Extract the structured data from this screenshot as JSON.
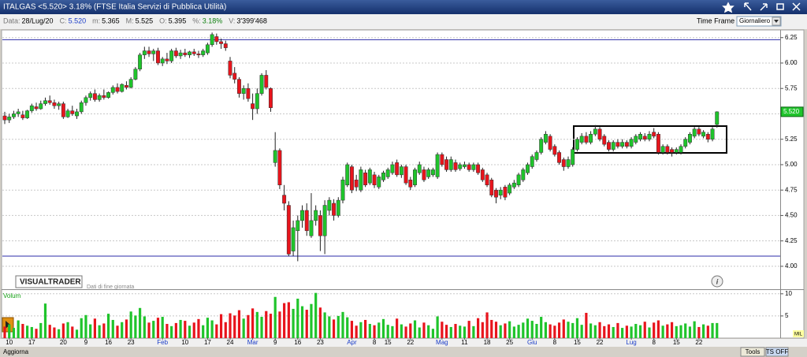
{
  "window": {
    "title": "ITALGAS <5.520> 3.18%  (FTSE Italia Servizi di Pubblica Utilità)",
    "info": [
      {
        "label": "Data:",
        "value": "28/Lug/20"
      },
      {
        "label": "C:",
        "value": "5.520"
      },
      {
        "label": "m:",
        "value": "5.365"
      },
      {
        "label": "M:",
        "value": "5.525"
      },
      {
        "label": "O:",
        "value": "5.395"
      },
      {
        "label": "%:",
        "value": "3.18%"
      },
      {
        "label": "V:",
        "value": "3'399'468"
      }
    ],
    "time_frame_label": "Time Frame",
    "time_frame_value": "Giornaliero",
    "logo": "VISUALTRADER",
    "logo_note": "Dati di fine giornata",
    "update_button": "Aggiorna",
    "tools_button": "Tools",
    "ts_button": "TS OFF"
  },
  "chart_data": {
    "type": "candlestick",
    "up_color": "#1fc42b",
    "down_color": "#e8141c",
    "grid": true,
    "hlines": [
      6.23,
      4.1
    ],
    "hline_color": "#2b2ba8",
    "ylim": [
      3.79,
      6.31
    ],
    "yticks": [
      {
        "value": 4,
        "label": "4.00"
      },
      {
        "value": 4.25,
        "label": "4.25"
      },
      {
        "value": 4.5,
        "label": "4.50"
      },
      {
        "value": 4.75,
        "label": "4.75"
      },
      {
        "value": 5,
        "label": "5.00"
      },
      {
        "value": 5.25,
        "label": "5.25"
      },
      {
        "value": 5.5,
        "label": "5.50"
      },
      {
        "value": 5.75,
        "label": "5.75"
      },
      {
        "value": 6,
        "label": "6.00"
      },
      {
        "value": 6.25,
        "label": "6.25"
      }
    ],
    "categories": [
      null,
      "10",
      null,
      null,
      null,
      null,
      "17",
      null,
      null,
      null,
      null,
      null,
      null,
      "20",
      null,
      null,
      null,
      null,
      "9",
      null,
      null,
      null,
      null,
      "16",
      null,
      null,
      null,
      null,
      "23",
      null,
      null,
      null,
      null,
      null,
      null,
      "Feb",
      null,
      null,
      null,
      null,
      "10",
      null,
      null,
      null,
      null,
      "17",
      null,
      null,
      null,
      null,
      "24",
      null,
      null,
      null,
      null,
      "Mar",
      null,
      null,
      null,
      null,
      "9",
      null,
      null,
      null,
      null,
      "16",
      null,
      null,
      null,
      null,
      "23",
      null,
      null,
      null,
      null,
      null,
      null,
      "Apr",
      null,
      null,
      null,
      null,
      "8",
      null,
      null,
      "15",
      null,
      null,
      null,
      null,
      "22",
      null,
      null,
      null,
      null,
      null,
      null,
      "Mag",
      null,
      null,
      null,
      null,
      "11",
      null,
      null,
      null,
      null,
      "18",
      null,
      null,
      null,
      null,
      "25",
      null,
      null,
      null,
      null,
      "Giu",
      null,
      null,
      null,
      null,
      "8",
      null,
      null,
      null,
      null,
      "15",
      null,
      null,
      null,
      null,
      "22",
      null,
      null,
      null,
      null,
      null,
      null,
      "Lug",
      null,
      null,
      null,
      null,
      "8",
      null,
      null,
      null,
      null,
      "15",
      null,
      null,
      null,
      null,
      "22",
      null,
      null,
      null,
      null
    ],
    "ohlc": [
      [
        5.48,
        5.52,
        5.4,
        5.44
      ],
      [
        5.44,
        5.5,
        5.41,
        5.47
      ],
      [
        5.47,
        5.53,
        5.45,
        5.5
      ],
      [
        5.5,
        5.55,
        5.47,
        5.52
      ],
      [
        5.49,
        5.53,
        5.44,
        5.46
      ],
      [
        5.46,
        5.54,
        5.45,
        5.53
      ],
      [
        5.53,
        5.6,
        5.51,
        5.58
      ],
      [
        5.57,
        5.61,
        5.53,
        5.55
      ],
      [
        5.55,
        5.63,
        5.54,
        5.6
      ],
      [
        5.6,
        5.66,
        5.58,
        5.63
      ],
      [
        5.63,
        5.68,
        5.59,
        5.61
      ],
      [
        5.61,
        5.64,
        5.55,
        5.58
      ],
      [
        5.58,
        5.62,
        5.54,
        5.6
      ],
      [
        5.6,
        5.62,
        5.45,
        5.47
      ],
      [
        5.47,
        5.55,
        5.46,
        5.53
      ],
      [
        5.53,
        5.58,
        5.48,
        5.5
      ],
      [
        5.48,
        5.55,
        5.45,
        5.52
      ],
      [
        5.52,
        5.63,
        5.5,
        5.61
      ],
      [
        5.61,
        5.68,
        5.58,
        5.66
      ],
      [
        5.66,
        5.72,
        5.63,
        5.7
      ],
      [
        5.7,
        5.74,
        5.62,
        5.64
      ],
      [
        5.64,
        5.7,
        5.62,
        5.68
      ],
      [
        5.68,
        5.74,
        5.64,
        5.66
      ],
      [
        5.66,
        5.72,
        5.65,
        5.71
      ],
      [
        5.71,
        5.78,
        5.69,
        5.76
      ],
      [
        5.76,
        5.8,
        5.7,
        5.72
      ],
      [
        5.72,
        5.8,
        5.71,
        5.79
      ],
      [
        5.78,
        5.82,
        5.74,
        5.76
      ],
      [
        5.76,
        5.86,
        5.75,
        5.84
      ],
      [
        5.84,
        5.96,
        5.83,
        5.94
      ],
      [
        5.94,
        6.1,
        5.92,
        6.08
      ],
      [
        6.08,
        6.16,
        6.04,
        6.12
      ],
      [
        6.12,
        6.16,
        6.06,
        6.09
      ],
      [
        6.09,
        6.14,
        6.02,
        6.12
      ],
      [
        6.12,
        6.15,
        5.98,
        6.0
      ],
      [
        6.0,
        6.06,
        5.97,
        6.04
      ],
      [
        6.04,
        6.1,
        5.99,
        6.02
      ],
      [
        6.02,
        6.14,
        6.0,
        6.12
      ],
      [
        6.12,
        6.15,
        6.05,
        6.07
      ],
      [
        6.07,
        6.13,
        6.04,
        6.1
      ],
      [
        6.1,
        6.14,
        6.06,
        6.08
      ],
      [
        6.08,
        6.12,
        6.05,
        6.11
      ],
      [
        6.11,
        6.14,
        6.07,
        6.09
      ],
      [
        6.09,
        6.12,
        6.05,
        6.08
      ],
      [
        6.08,
        6.14,
        6.06,
        6.12
      ],
      [
        6.1,
        6.2,
        6.08,
        6.18
      ],
      [
        6.18,
        6.3,
        6.16,
        6.28
      ],
      [
        6.26,
        6.29,
        6.18,
        6.21
      ],
      [
        6.21,
        6.24,
        6.14,
        6.19
      ],
      [
        6.19,
        6.22,
        6.12,
        6.15
      ],
      [
        6.02,
        6.06,
        5.85,
        5.88
      ],
      [
        5.9,
        5.96,
        5.8,
        5.84
      ],
      [
        5.84,
        5.86,
        5.66,
        5.7
      ],
      [
        5.7,
        5.78,
        5.64,
        5.75
      ],
      [
        5.75,
        5.8,
        5.62,
        5.65
      ],
      [
        5.6,
        5.7,
        5.44,
        5.55
      ],
      [
        5.55,
        5.75,
        5.5,
        5.7
      ],
      [
        5.7,
        5.9,
        5.68,
        5.88
      ],
      [
        5.88,
        5.93,
        5.74,
        5.76
      ],
      [
        5.75,
        5.76,
        5.52,
        5.56
      ],
      [
        5.02,
        5.32,
        4.98,
        5.14
      ],
      [
        5.14,
        5.16,
        4.76,
        4.8
      ],
      [
        4.7,
        4.8,
        4.55,
        4.62
      ],
      [
        4.6,
        4.64,
        4.1,
        4.12
      ],
      [
        4.15,
        4.45,
        4.1,
        4.38
      ],
      [
        4.35,
        4.5,
        4.05,
        4.45
      ],
      [
        4.45,
        4.6,
        4.38,
        4.55
      ],
      [
        4.55,
        4.62,
        4.3,
        4.35
      ],
      [
        4.3,
        4.72,
        4.28,
        4.45
      ],
      [
        4.45,
        4.6,
        4.4,
        4.55
      ],
      [
        4.5,
        4.55,
        4.15,
        4.3
      ],
      [
        4.3,
        4.65,
        4.12,
        4.6
      ],
      [
        4.55,
        4.68,
        4.5,
        4.65
      ],
      [
        4.62,
        4.66,
        4.45,
        4.5
      ],
      [
        4.5,
        4.68,
        4.48,
        4.65
      ],
      [
        4.65,
        4.88,
        4.62,
        4.85
      ],
      [
        4.8,
        5.02,
        4.78,
        5.0
      ],
      [
        4.98,
        5.0,
        4.72,
        4.75
      ],
      [
        4.85,
        4.9,
        4.74,
        4.78
      ],
      [
        4.75,
        4.98,
        4.73,
        4.95
      ],
      [
        4.92,
        4.95,
        4.78,
        4.8
      ],
      [
        4.82,
        4.97,
        4.8,
        4.95
      ],
      [
        4.9,
        4.93,
        4.77,
        4.8
      ],
      [
        4.78,
        4.9,
        4.76,
        4.88
      ],
      [
        4.85,
        4.94,
        4.83,
        4.92
      ],
      [
        4.88,
        4.97,
        4.86,
        4.95
      ],
      [
        4.92,
        5.03,
        4.9,
        5.0
      ],
      [
        5.02,
        5.05,
        4.88,
        4.9
      ],
      [
        4.9,
        5.0,
        4.87,
        4.98
      ],
      [
        4.98,
        5.0,
        4.8,
        4.82
      ],
      [
        4.85,
        4.88,
        4.75,
        4.78
      ],
      [
        4.8,
        4.97,
        4.78,
        4.95
      ],
      [
        4.92,
        5.03,
        4.9,
        5.0
      ],
      [
        4.95,
        4.98,
        4.83,
        4.85
      ],
      [
        4.88,
        4.97,
        4.86,
        4.95
      ],
      [
        4.9,
        4.97,
        4.88,
        4.95
      ],
      [
        4.88,
        5.12,
        4.86,
        5.1
      ],
      [
        5.1,
        5.12,
        4.98,
        5.0
      ],
      [
        5.05,
        5.08,
        4.93,
        4.95
      ],
      [
        4.95,
        5.08,
        4.93,
        5.05
      ],
      [
        5.02,
        5.05,
        4.93,
        4.95
      ],
      [
        4.96,
        5.02,
        4.94,
        5.0
      ],
      [
        4.98,
        5.03,
        4.96,
        5.0
      ],
      [
        5.0,
        5.02,
        4.93,
        4.95
      ],
      [
        4.95,
        5.02,
        4.93,
        5.0
      ],
      [
        5.0,
        5.02,
        4.9,
        4.92
      ],
      [
        4.95,
        4.97,
        4.83,
        4.85
      ],
      [
        4.9,
        4.92,
        4.78,
        4.8
      ],
      [
        4.85,
        4.87,
        4.68,
        4.7
      ],
      [
        4.75,
        4.77,
        4.62,
        4.68
      ],
      [
        4.7,
        4.78,
        4.66,
        4.75
      ],
      [
        4.78,
        4.8,
        4.65,
        4.68
      ],
      [
        4.72,
        4.82,
        4.7,
        4.8
      ],
      [
        4.78,
        4.85,
        4.76,
        4.82
      ],
      [
        4.8,
        4.92,
        4.78,
        4.9
      ],
      [
        4.85,
        4.97,
        4.83,
        4.95
      ],
      [
        4.92,
        5.02,
        4.9,
        5.0
      ],
      [
        4.98,
        5.1,
        4.96,
        5.08
      ],
      [
        5.05,
        5.14,
        5.03,
        5.12
      ],
      [
        5.12,
        5.27,
        5.1,
        5.25
      ],
      [
        5.22,
        5.33,
        5.2,
        5.3
      ],
      [
        5.28,
        5.3,
        5.13,
        5.15
      ],
      [
        5.18,
        5.2,
        5.08,
        5.1
      ],
      [
        5.12,
        5.14,
        5.0,
        5.02
      ],
      [
        5.05,
        5.07,
        4.94,
        4.98
      ],
      [
        4.98,
        5.08,
        4.96,
        5.05
      ],
      [
        5.0,
        5.17,
        4.98,
        5.15
      ],
      [
        5.15,
        5.27,
        5.13,
        5.25
      ],
      [
        5.22,
        5.31,
        5.2,
        5.28
      ],
      [
        5.28,
        5.32,
        5.2,
        5.22
      ],
      [
        5.22,
        5.33,
        5.2,
        5.3
      ],
      [
        5.3,
        5.39,
        5.28,
        5.35
      ],
      [
        5.35,
        5.37,
        5.23,
        5.25
      ],
      [
        5.28,
        5.3,
        5.18,
        5.2
      ],
      [
        5.22,
        5.24,
        5.13,
        5.15
      ],
      [
        5.15,
        5.24,
        5.13,
        5.22
      ],
      [
        5.22,
        5.25,
        5.16,
        5.18
      ],
      [
        5.18,
        5.25,
        5.16,
        5.22
      ],
      [
        5.22,
        5.24,
        5.16,
        5.18
      ],
      [
        5.18,
        5.27,
        5.16,
        5.25
      ],
      [
        5.22,
        5.3,
        5.2,
        5.28
      ],
      [
        5.25,
        5.32,
        5.23,
        5.3
      ],
      [
        5.28,
        5.31,
        5.23,
        5.25
      ],
      [
        5.25,
        5.33,
        5.23,
        5.3
      ],
      [
        5.32,
        5.36,
        5.26,
        5.28
      ],
      [
        5.3,
        5.32,
        5.1,
        5.12
      ],
      [
        5.12,
        5.2,
        5.1,
        5.18
      ],
      [
        5.18,
        5.2,
        5.1,
        5.12
      ],
      [
        5.15,
        5.17,
        5.08,
        5.12
      ],
      [
        5.12,
        5.17,
        5.1,
        5.15
      ],
      [
        5.12,
        5.2,
        5.1,
        5.18
      ],
      [
        5.18,
        5.27,
        5.16,
        5.25
      ],
      [
        5.22,
        5.32,
        5.2,
        5.3
      ],
      [
        5.28,
        5.37,
        5.26,
        5.35
      ],
      [
        5.35,
        5.37,
        5.28,
        5.3
      ],
      [
        5.28,
        5.34,
        5.26,
        5.32
      ],
      [
        5.3,
        5.32,
        5.22,
        5.25
      ],
      [
        5.25,
        5.37,
        5.23,
        5.35
      ],
      [
        5.395,
        5.525,
        5.365,
        5.52
      ]
    ],
    "volume": {
      "label": "Volum",
      "unit_label": "MIL",
      "ylim": [
        0,
        10.5
      ],
      "yticks": [
        5,
        10
      ],
      "values": [
        2.6,
        3.1,
        2.3,
        4.0,
        3.2,
        2.8,
        2.5,
        2.1,
        3.4,
        7.8,
        3.0,
        2.4,
        2.0,
        3.3,
        3.6,
        2.6,
        1.9,
        4.5,
        5.2,
        3.1,
        4.4,
        2.9,
        3.3,
        5.5,
        4.1,
        2.8,
        3.6,
        4.2,
        6.0,
        5.1,
        6.8,
        4.9,
        3.5,
        3.9,
        4.6,
        4.8,
        3.2,
        2.7,
        3.4,
        4.1,
        3.9,
        2.8,
        3.5,
        4.3,
        2.9,
        4.6,
        4.0,
        3.1,
        5.4,
        3.6,
        5.6,
        5.1,
        6.3,
        4.4,
        5.2,
        6.7,
        5.9,
        4.8,
        6.1,
        5.5,
        9.3,
        6.0,
        7.9,
        8.1,
        6.6,
        8.9,
        7.2,
        6.4,
        7.7,
        10.2,
        6.9,
        5.8,
        4.9,
        4.2,
        5.0,
        5.9,
        4.7,
        3.9,
        2.8,
        3.6,
        4.1,
        3.2,
        2.9,
        3.5,
        4.3,
        3.0,
        2.7,
        4.4,
        3.1,
        2.6,
        3.3,
        4.0,
        2.4,
        3.5,
        2.9,
        2.1,
        4.9,
        3.7,
        3.0,
        2.5,
        3.2,
        2.8,
        2.6,
        3.9,
        2.7,
        4.5,
        3.6,
        5.8,
        4.1,
        3.7,
        2.9,
        3.3,
        3.8,
        2.6,
        3.0,
        3.5,
        4.4,
        3.9,
        3.2,
        4.8,
        3.6,
        3.1,
        2.8,
        3.5,
        4.2,
        3.7,
        3.4,
        4.5,
        3.0,
        5.7,
        3.3,
        2.9,
        3.6,
        2.7,
        3.1,
        2.5,
        3.4,
        2.3,
        2.8,
        2.6,
        3.2,
        2.9,
        3.7,
        2.4,
        3.5,
        4.0,
        2.8,
        3.1,
        3.6,
        2.7,
        2.9,
        3.3,
        2.6,
        3.8,
        2.5,
        3.1,
        2.8,
        3.4,
        3.4
      ]
    }
  }
}
